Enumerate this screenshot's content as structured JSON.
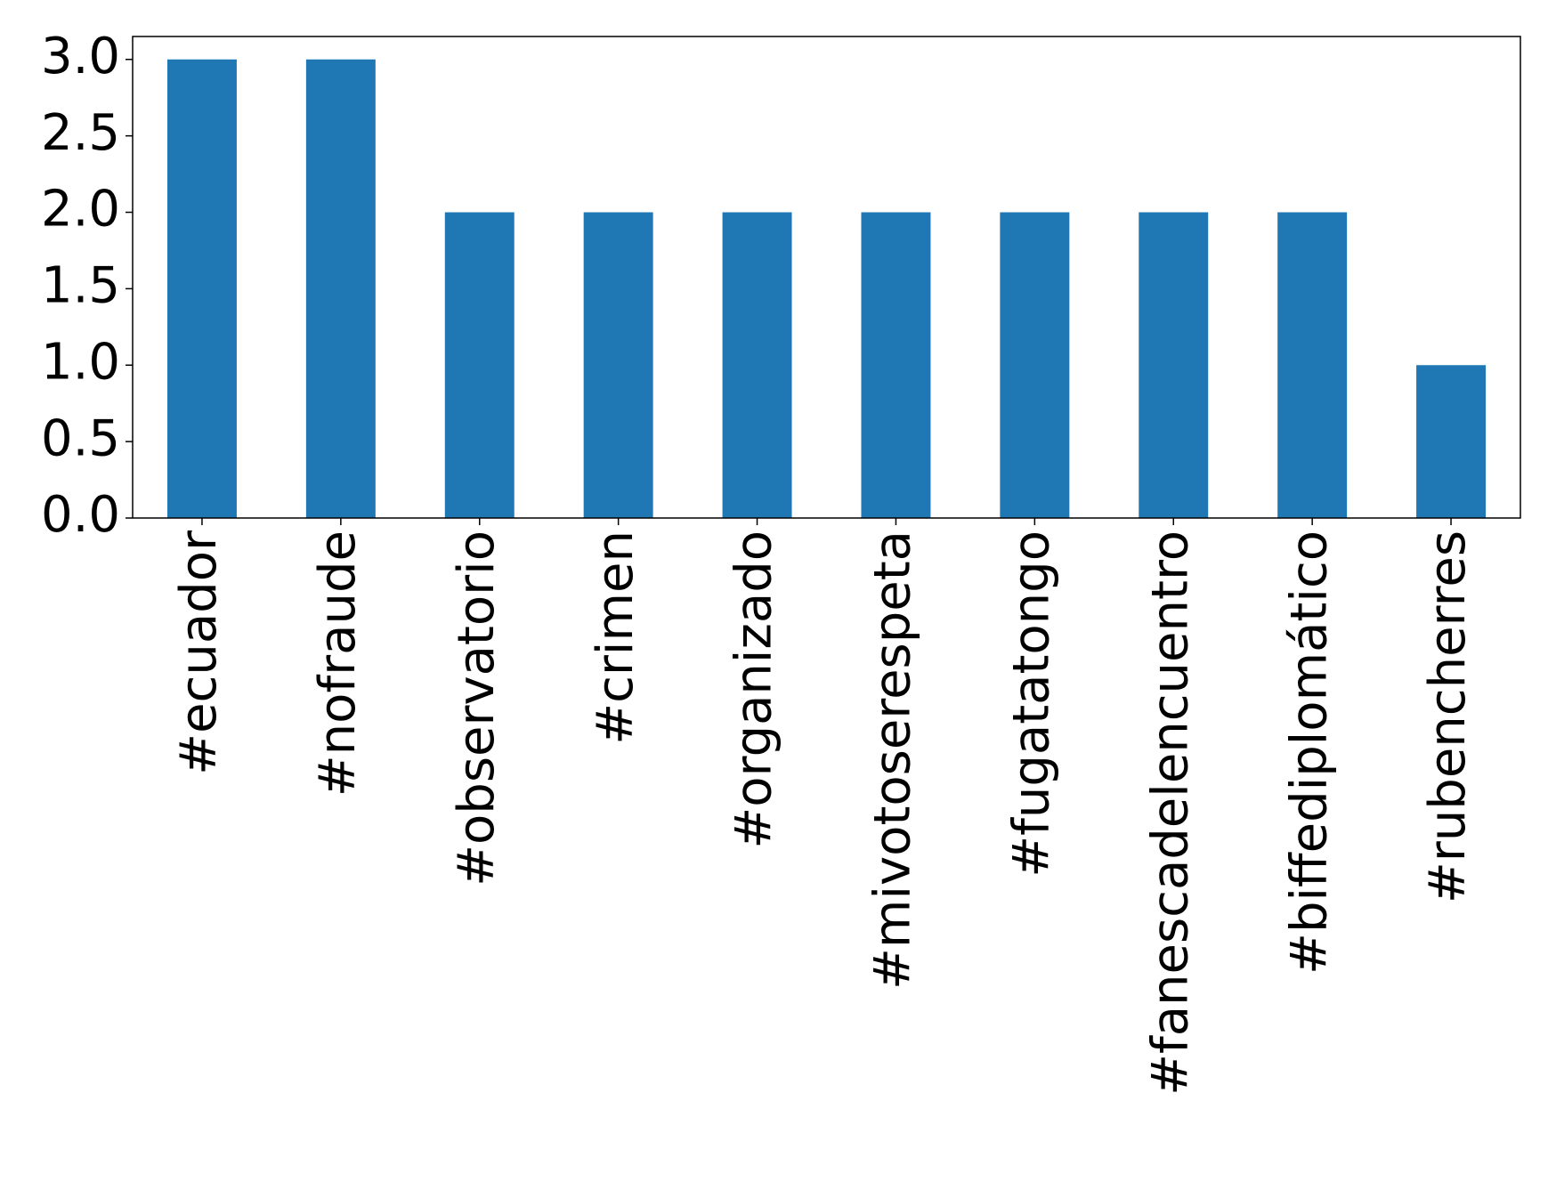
{
  "chart_data": {
    "type": "bar",
    "categories": [
      "#ecuador",
      "#nofraude",
      "#observatorio",
      "#crimen",
      "#organizado",
      "#mivotoserespeta",
      "#fugatatongo",
      "#fanescadelencuentro",
      "#biffediplomático",
      "#rubencherres"
    ],
    "values": [
      3,
      3,
      2,
      2,
      2,
      2,
      2,
      2,
      2,
      1
    ],
    "color": "#1f77b4",
    "ylim": [
      0,
      3.15
    ],
    "yticks": [
      {
        "value": 0,
        "label": "0.0"
      },
      0.5,
      {
        "value": 1,
        "label": "1.0"
      },
      1.5,
      {
        "value": 2,
        "label": "2.0"
      },
      2.5,
      {
        "value": 3,
        "label": "3.0"
      }
    ]
  }
}
